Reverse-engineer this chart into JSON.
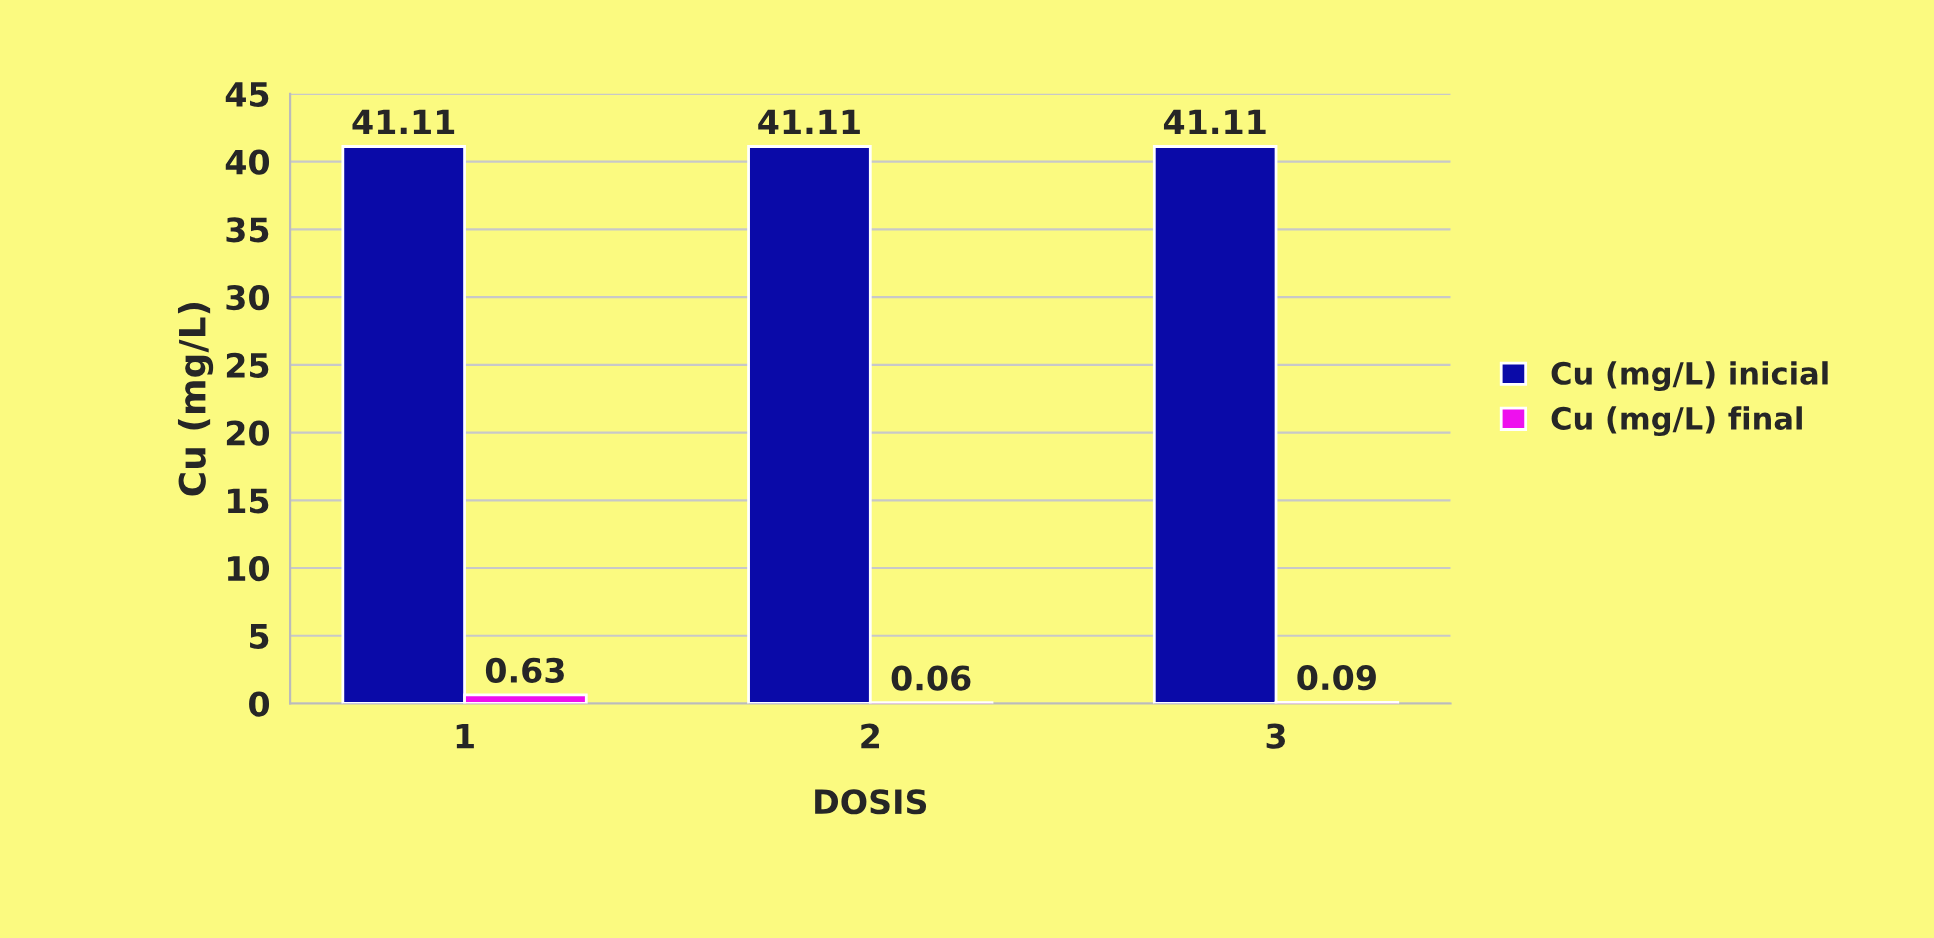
{
  "chart_data": {
    "type": "bar",
    "xlabel": "DOSIS",
    "ylabel": "Cu (mg/L)",
    "categories": [
      "1",
      "2",
      "3"
    ],
    "series": [
      {
        "name": "Cu (mg/L) inicial",
        "color": "#0a0aa8",
        "values": [
          41.11,
          41.11,
          41.11
        ]
      },
      {
        "name": "Cu (mg/L) final",
        "color": "#ee10ee",
        "values": [
          0.63,
          0.06,
          0.09
        ]
      }
    ],
    "ylim": [
      0,
      45
    ],
    "yticks": [
      0,
      5,
      10,
      15,
      20,
      25,
      30,
      35,
      40,
      45
    ],
    "grid": "y",
    "legend": "right",
    "data_labels": true
  }
}
